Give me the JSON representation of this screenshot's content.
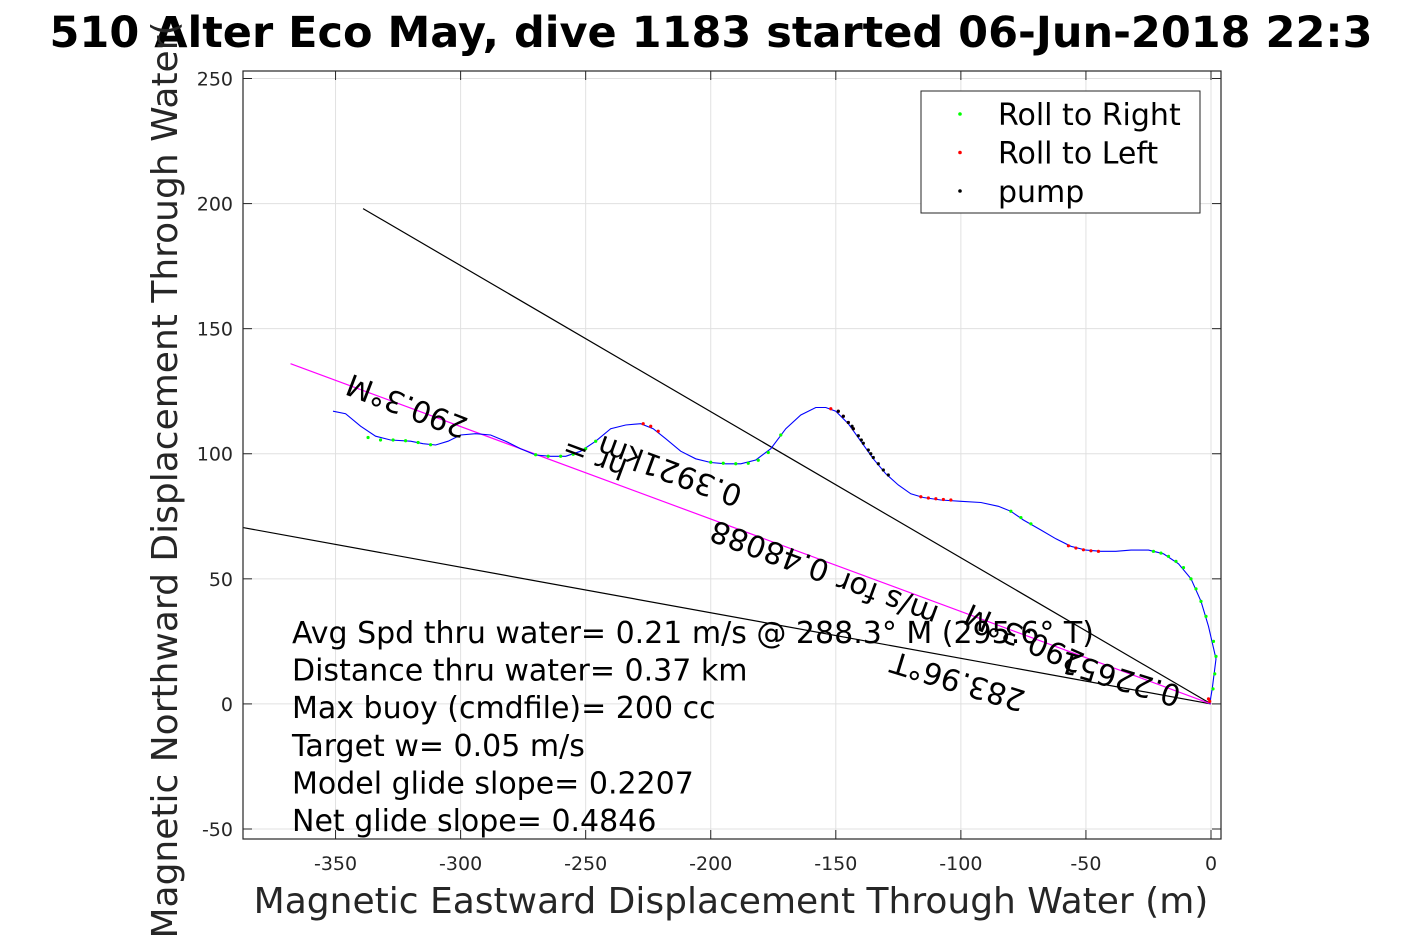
{
  "chart_data": {
    "type": "line",
    "title": "510 Alter Eco May, dive 1183 started 06-Jun-2018 22:3",
    "xlabel": "Magnetic Eastward Displacement Through Water (m)",
    "ylabel": "Magnetic Northward Displacement Through Water(",
    "xlim": [
      -387,
      4
    ],
    "ylim": [
      -54,
      253
    ],
    "xticks": [
      -350,
      -300,
      -250,
      -200,
      -150,
      -100,
      -50,
      0
    ],
    "xtick_labels": [
      "-350",
      "-300",
      "-250",
      "-200",
      "-150",
      "-100",
      "-50",
      "0"
    ],
    "yticks": [
      -50,
      0,
      50,
      100,
      150,
      200,
      250
    ],
    "ytick_labels": [
      "-50",
      "0",
      "50",
      "100",
      "150",
      "200",
      "250"
    ],
    "grid": true,
    "legend_position": "top-right",
    "legend": [
      {
        "label": "Roll to Right",
        "color": "#00ff00"
      },
      {
        "label": "Roll to Left",
        "color": "#ff0000"
      },
      {
        "label": "pump",
        "color": "#000000"
      }
    ],
    "track": {
      "color": "#0000ff",
      "points": [
        [
          -351,
          117
        ],
        [
          -346,
          116
        ],
        [
          -340,
          111
        ],
        [
          -334,
          107
        ],
        [
          -328,
          105.5
        ],
        [
          -320,
          105
        ],
        [
          -315,
          104
        ],
        [
          -310,
          103.5
        ],
        [
          -305,
          105
        ],
        [
          -300,
          107.5
        ],
        [
          -294,
          108
        ],
        [
          -288,
          107.5
        ],
        [
          -282,
          105
        ],
        [
          -276,
          102
        ],
        [
          -270,
          99.5
        ],
        [
          -264,
          99
        ],
        [
          -258,
          99
        ],
        [
          -252,
          101
        ],
        [
          -246,
          105
        ],
        [
          -240,
          110
        ],
        [
          -234,
          111.5
        ],
        [
          -228,
          112
        ],
        [
          -223,
          110
        ],
        [
          -218,
          106
        ],
        [
          -212,
          101
        ],
        [
          -206,
          98
        ],
        [
          -200,
          96.5
        ],
        [
          -194,
          96
        ],
        [
          -188,
          96
        ],
        [
          -182,
          97.5
        ],
        [
          -176,
          102
        ],
        [
          -170,
          110
        ],
        [
          -164,
          115.5
        ],
        [
          -158,
          118.5
        ],
        [
          -154,
          118.5
        ],
        [
          -150,
          117
        ],
        [
          -145,
          112
        ],
        [
          -140,
          105
        ],
        [
          -135,
          98
        ],
        [
          -130,
          92
        ],
        [
          -125,
          87.5
        ],
        [
          -120,
          84
        ],
        [
          -115,
          82.5
        ],
        [
          -108,
          81.5
        ],
        [
          -100,
          81
        ],
        [
          -92,
          80.5
        ],
        [
          -85,
          79
        ],
        [
          -80,
          77
        ],
        [
          -75,
          73.5
        ],
        [
          -68,
          69.5
        ],
        [
          -62,
          66
        ],
        [
          -56,
          63
        ],
        [
          -50,
          61.5
        ],
        [
          -44,
          61
        ],
        [
          -38,
          61
        ],
        [
          -32,
          61.5
        ],
        [
          -25,
          61.5
        ],
        [
          -19,
          60
        ],
        [
          -13,
          56
        ],
        [
          -8,
          50
        ],
        [
          -4,
          41
        ],
        [
          -1,
          31
        ],
        [
          2,
          18
        ],
        [
          0.5,
          6
        ],
        [
          -0.5,
          0
        ]
      ]
    },
    "roll_right_points": [
      [
        -337,
        106.5
      ],
      [
        -332,
        105.5
      ],
      [
        -327,
        105.5
      ],
      [
        -322,
        105.2
      ],
      [
        -317,
        104.5
      ],
      [
        -312,
        103.6
      ],
      [
        -270,
        99.6
      ],
      [
        -265,
        99
      ],
      [
        -260,
        99
      ],
      [
        -255,
        99.8
      ],
      [
        -250,
        102
      ],
      [
        -246,
        105
      ],
      [
        -200,
        96.6
      ],
      [
        -195,
        96.2
      ],
      [
        -190,
        96
      ],
      [
        -185,
        96.2
      ],
      [
        -181,
        97.4
      ],
      [
        -177,
        100.5
      ],
      [
        -172,
        107.5
      ],
      [
        -80,
        77
      ],
      [
        -76,
        74.5
      ],
      [
        -72,
        72
      ],
      [
        -23,
        61
      ],
      [
        -20,
        60.3
      ],
      [
        -17,
        59
      ],
      [
        -14,
        57
      ],
      [
        -11,
        54.5
      ],
      [
        -8,
        50
      ],
      [
        -6,
        46
      ],
      [
        -4,
        41
      ],
      [
        -2,
        35
      ],
      [
        1,
        25
      ],
      [
        2,
        19
      ],
      [
        1.5,
        12
      ],
      [
        0.8,
        6
      ]
    ],
    "roll_left_points": [
      [
        -227,
        112
      ],
      [
        -224,
        111
      ],
      [
        -221,
        109
      ],
      [
        -152,
        118
      ],
      [
        -149,
        117
      ],
      [
        -147,
        115
      ],
      [
        -145,
        112.5
      ],
      [
        -143,
        110
      ],
      [
        -116,
        82.8
      ],
      [
        -113,
        82.3
      ],
      [
        -110,
        82
      ],
      [
        -107,
        81.7
      ],
      [
        -104,
        81.5
      ],
      [
        -57,
        63.2
      ],
      [
        -54,
        62.3
      ],
      [
        -51,
        61.6
      ],
      [
        -48,
        61.2
      ],
      [
        -45,
        61
      ],
      [
        -1,
        2
      ],
      [
        -0.5,
        1
      ]
    ],
    "pump_points": [
      [
        -149,
        117
      ],
      [
        -147,
        115
      ],
      [
        -145,
        112.5
      ],
      [
        -143,
        110
      ],
      [
        -141,
        107.2
      ],
      [
        -139,
        104.2
      ],
      [
        -137,
        101.5
      ],
      [
        -135,
        98.5
      ],
      [
        -133,
        96
      ],
      [
        -131,
        93.5
      ],
      [
        -129,
        91.5
      ],
      [
        -143.5,
        111
      ],
      [
        -139.8,
        105.5
      ],
      [
        -136,
        100
      ]
    ],
    "lines": [
      {
        "name": "heading_line",
        "color": "#000000",
        "points": [
          [
            -339,
            198
          ],
          [
            0,
            0
          ]
        ]
      },
      {
        "name": "current_line",
        "color": "#000000",
        "points": [
          [
            -387,
            70.5
          ],
          [
            0,
            0
          ]
        ]
      },
      {
        "name": "net_line",
        "color": "#ff00ff",
        "points": [
          [
            -368,
            136
          ],
          [
            0,
            0
          ]
        ]
      }
    ],
    "annotations": [
      {
        "text": "290.3°M",
        "x": -320,
        "y": 123,
        "rotate": 201
      },
      {
        "text": "0.3921km",
        "x": -215,
        "y": 97,
        "rotate": 200.3
      },
      {
        "text": "hr =",
        "x": -245,
        "y": 102,
        "rotate": 200.3
      },
      {
        "text": "0.48088",
        "x": -175,
        "y": 65,
        "rotate": 200.3
      },
      {
        "text": "m/s for",
        "x": -128,
        "y": 46,
        "rotate": 200.3
      },
      {
        "text": "290.3°M",
        "x": -73,
        "y": 30,
        "rotate": 204
      },
      {
        "text": "0.22651",
        "x": -35,
        "y": 14,
        "rotate": 197
      },
      {
        "text": "283.96°T",
        "x": -100,
        "y": 13,
        "rotate": 197
      }
    ],
    "stats": [
      "Avg Spd thru water=  0.21 m/s @ 288.3° M (295.6° T)",
      "Distance thru water=  0.37 km",
      "Max buoy (cmdfile)= 200 cc",
      "Target w= 0.05 m/s",
      "Model glide slope= 0.2207",
      "Net glide slope= 0.4846"
    ]
  }
}
